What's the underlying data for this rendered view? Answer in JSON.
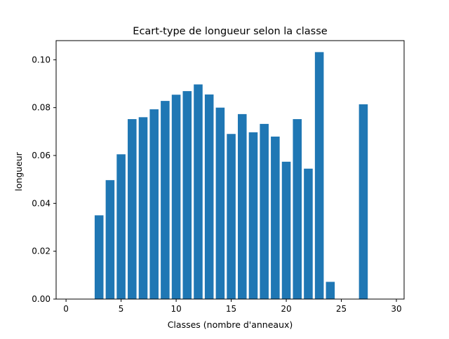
{
  "chart_data": {
    "type": "bar",
    "title": "Ecart-type de longueur selon la classe",
    "xlabel": "Classes (nombre d'anneaux)",
    "ylabel": "longueur",
    "xlim": [
      -0.9,
      30.7
    ],
    "ylim": [
      0,
      0.108
    ],
    "xticks": [
      0,
      5,
      10,
      15,
      20,
      25,
      30
    ],
    "yticks": [
      0.0,
      0.02,
      0.04,
      0.06,
      0.08,
      0.1
    ],
    "ytick_labels": [
      "0.00",
      "0.02",
      "0.04",
      "0.06",
      "0.08",
      "0.10"
    ],
    "bar_color": "#1f77b4",
    "grid": false,
    "x": [
      1,
      2,
      3,
      4,
      5,
      6,
      7,
      8,
      9,
      10,
      11,
      12,
      13,
      14,
      15,
      16,
      17,
      18,
      19,
      20,
      21,
      22,
      23,
      24,
      25,
      26,
      27,
      29
    ],
    "values": [
      0,
      0,
      0.035,
      0.0497,
      0.0605,
      0.0752,
      0.076,
      0.0793,
      0.0828,
      0.0854,
      0.0869,
      0.0897,
      0.0855,
      0.08,
      0.069,
      0.0773,
      0.0697,
      0.0732,
      0.0679,
      0.0574,
      0.0752,
      0.0545,
      0.1032,
      0.0072,
      0,
      0,
      0.0814,
      0
    ]
  }
}
